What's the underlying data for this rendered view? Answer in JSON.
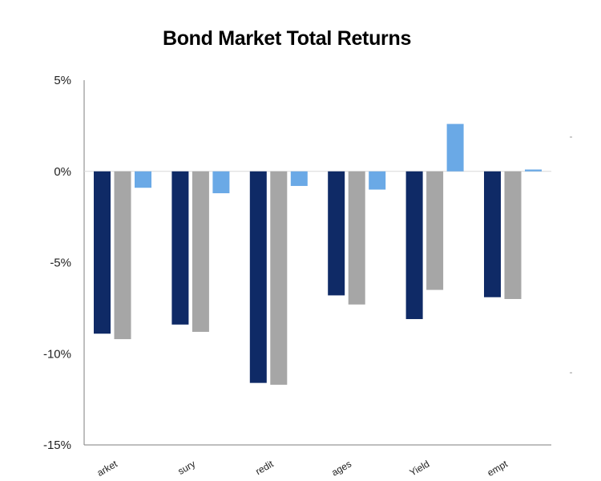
{
  "chart_data": {
    "type": "bar",
    "title": "Bond Market Total Returns",
    "xlabel": "",
    "ylabel": "",
    "categories": [
      "arket",
      "sury",
      "redit",
      "ages",
      "Yield",
      "empt"
    ],
    "series": [
      {
        "values": [
          -8.9,
          -8.4,
          -11.6,
          -6.8,
          -8.1,
          -6.9
        ],
        "color": "#0f2a66"
      },
      {
        "values": [
          -9.2,
          -8.8,
          -11.7,
          -7.3,
          -6.5,
          -7.0
        ],
        "color": "#a6a6a6"
      },
      {
        "values": [
          -0.9,
          -1.2,
          -0.8,
          -1.0,
          2.6,
          0.1
        ],
        "color": "#6aa9e6"
      }
    ],
    "ylim": [
      -15,
      5
    ],
    "yticks": [
      5,
      0,
      -5,
      -10,
      -15
    ],
    "ytick_labels": [
      "5%",
      "0%",
      "-5%",
      "-10%",
      "-15%"
    ],
    "grid": false,
    "legend": "none"
  }
}
